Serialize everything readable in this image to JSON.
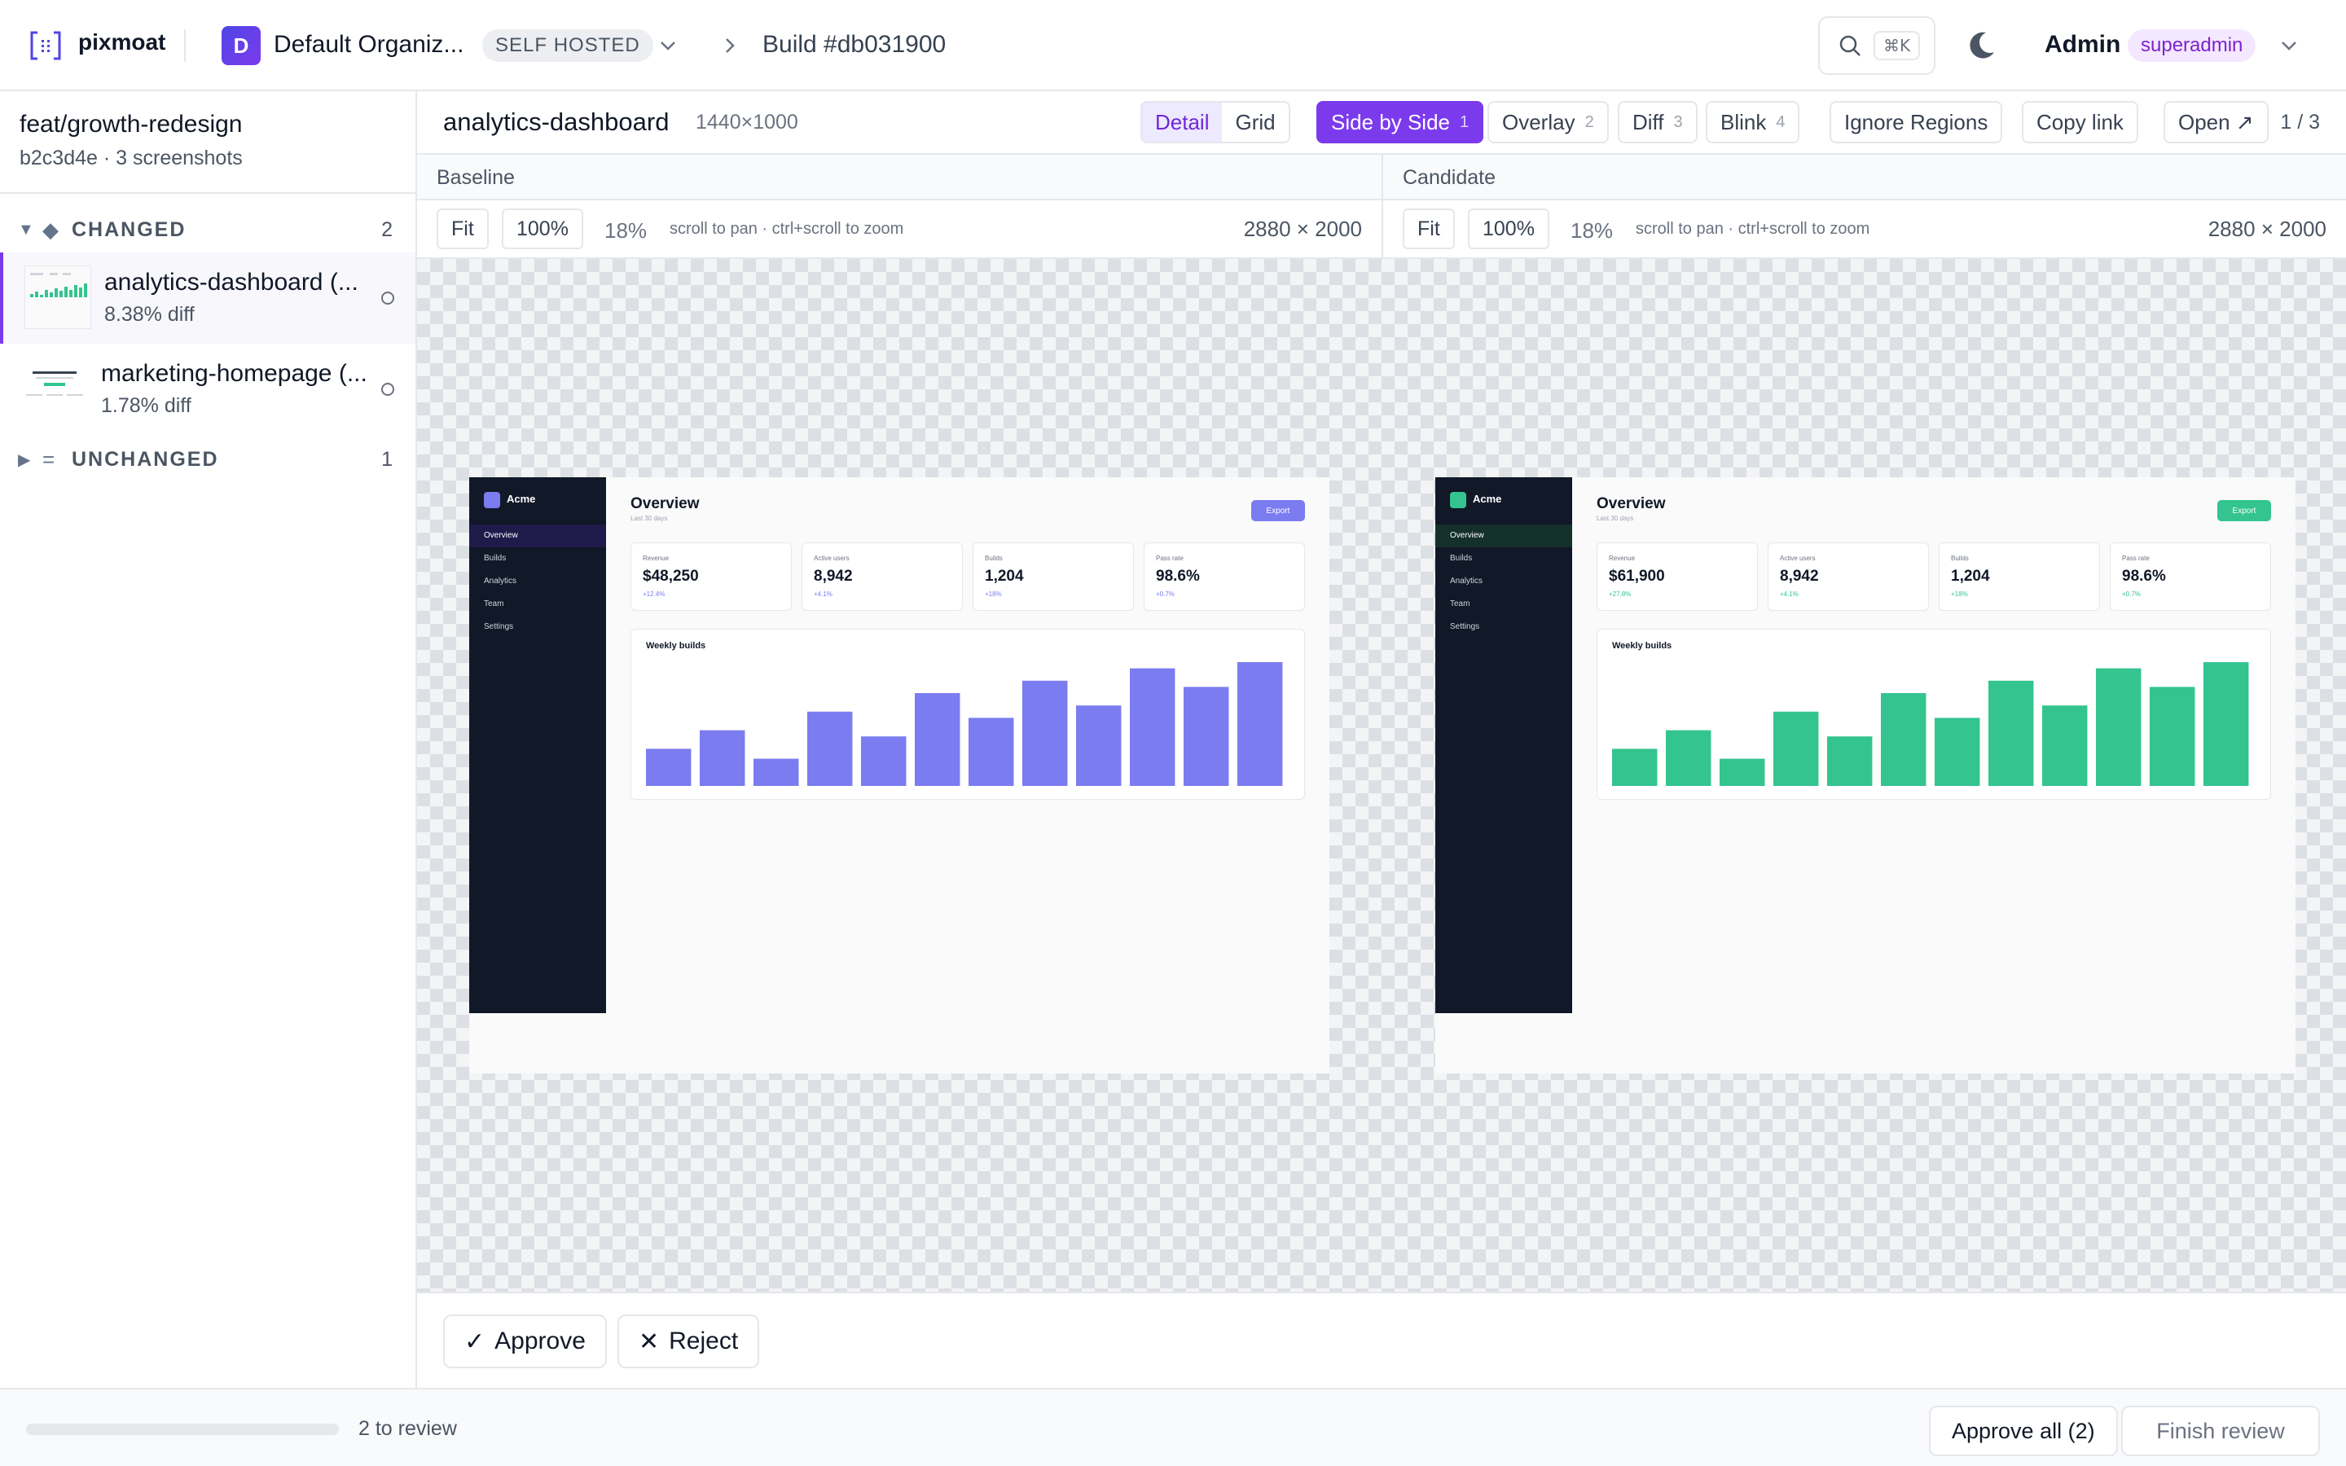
{
  "header": {
    "logo_text": "pixmoat",
    "org_initial": "D",
    "org_name": "Default Organiz...",
    "org_badge": "SELF HOSTED",
    "build_label": "Build #db031900",
    "search_shortcut": "⌘K",
    "admin_name": "Admin",
    "admin_role": "superadmin"
  },
  "sidebar": {
    "branch": "feat/growth-redesign",
    "branch_meta": "b2c3d4e · 3 screenshots",
    "changed": {
      "label": "CHANGED",
      "count": "2",
      "icon": "◆"
    },
    "unchanged": {
      "label": "UNCHANGED",
      "count": "1",
      "icon": "="
    },
    "items": [
      {
        "name": "analytics-dashboard (...",
        "diff": "8.38% diff"
      },
      {
        "name": "marketing-homepage (...",
        "diff": "1.78% diff"
      }
    ]
  },
  "toolbar": {
    "shot_name": "analytics-dashboard",
    "shot_dims": "1440×1000",
    "view_detail": "Detail",
    "view_grid": "Grid",
    "modes": [
      {
        "label": "Side by Side",
        "key": "1"
      },
      {
        "label": "Overlay",
        "key": "2"
      },
      {
        "label": "Diff",
        "key": "3"
      },
      {
        "label": "Blink",
        "key": "4"
      }
    ],
    "ignore_regions": "Ignore Regions",
    "copy_link": "Copy link",
    "open": "Open ↗",
    "pager": "1 / 3"
  },
  "panes": {
    "baseline": {
      "title": "Baseline",
      "fit": "Fit",
      "zoom_btn": "100%",
      "zoom": "18%",
      "hint": "scroll to pan · ctrl+scroll to zoom",
      "size": "2880 × 2000"
    },
    "candidate": {
      "title": "Candidate",
      "fit": "Fit",
      "zoom_btn": "100%",
      "zoom": "18%",
      "hint": "scroll to pan · ctrl+scroll to zoom",
      "size": "2880 × 2000"
    }
  },
  "mini": {
    "brand": "Acme",
    "nav": [
      "Overview",
      "Builds",
      "Analytics",
      "Team",
      "Settings"
    ],
    "title": "Overview",
    "subtitle": "Last 30 days",
    "export": "Export",
    "chart_title": "Weekly builds",
    "bars": [
      3,
      4.5,
      2.2,
      6,
      4,
      7.5,
      5.5,
      8.5,
      6.5,
      9.5,
      8,
      10
    ],
    "baseline": {
      "accent": "#7b7cf0",
      "cards": [
        {
          "label": "Revenue",
          "value": "$48,250",
          "delta": "+12.4%"
        },
        {
          "label": "Active users",
          "value": "8,942",
          "delta": "+4.1%"
        },
        {
          "label": "Builds",
          "value": "1,204",
          "delta": "+18%"
        },
        {
          "label": "Pass rate",
          "value": "98.6%",
          "delta": "+0.7%"
        }
      ]
    },
    "candidate": {
      "accent": "#34c48f",
      "cards": [
        {
          "label": "Revenue",
          "value": "$61,900",
          "delta": "+27.8%"
        },
        {
          "label": "Active users",
          "value": "8,942",
          "delta": "+4.1%"
        },
        {
          "label": "Builds",
          "value": "1,204",
          "delta": "+18%"
        },
        {
          "label": "Pass rate",
          "value": "98.6%",
          "delta": "+0.7%"
        }
      ]
    }
  },
  "actions": {
    "approve": "Approve",
    "reject": "Reject"
  },
  "footer": {
    "progress": 0,
    "remaining": "2 to review",
    "approve_all": "Approve all (2)",
    "finish": "Finish review"
  }
}
